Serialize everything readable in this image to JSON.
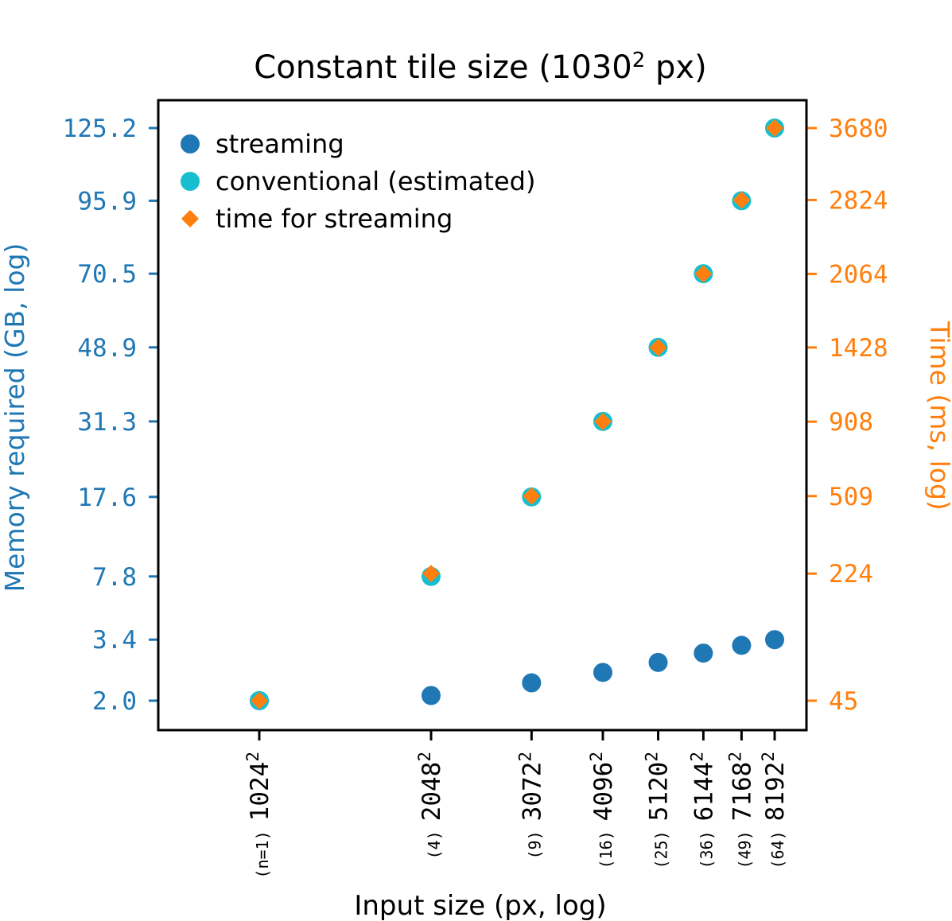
{
  "chart_data": {
    "type": "scatter",
    "title": "Constant tile size (1030",
    "title_sup": "2",
    "title_suffix": " px)",
    "xlabel": "Input size (px, log)",
    "ylabel_left": "Memory required (GB, log)",
    "ylabel_right": "Time (ms, log)",
    "x": [
      1024,
      2048,
      3072,
      4096,
      5120,
      6144,
      7168,
      8192
    ],
    "x_tick_labels": [
      "1024",
      "2048",
      "3072",
      "4096",
      "5120",
      "6144",
      "7168",
      "8192"
    ],
    "x_tick_sup": "2",
    "x_tick_counts": [
      "(n=1)",
      "(4)",
      "(9)",
      "(16)",
      "(25)",
      "(36)",
      "(49)",
      "(64)"
    ],
    "y_left_ticks": [
      2.0,
      3.4,
      7.8,
      17.6,
      31.3,
      48.9,
      70.5,
      95.9,
      125.2
    ],
    "y_left_tick_labels": [
      "2.0",
      "3.4",
      "7.8",
      "17.6",
      "31.3",
      "48.9",
      "70.5",
      "95.9",
      "125.2"
    ],
    "y_right_ticks": [
      45,
      224,
      509,
      908,
      1428,
      2064,
      2824,
      3680
    ],
    "y_right_tick_labels": [
      "45",
      "224",
      "509",
      "908",
      "1428",
      "2064",
      "2824",
      "3680"
    ],
    "series": [
      {
        "name": "streaming",
        "axis": "left",
        "marker": "circle",
        "color": "#1f77b4",
        "values": [
          2.0,
          2.01,
          2.12,
          2.3,
          2.55,
          2.85,
          3.15,
          3.4
        ]
      },
      {
        "name": "conventional (estimated)",
        "axis": "left",
        "marker": "circle",
        "color": "#17becf",
        "values": [
          2.0,
          7.8,
          17.6,
          31.3,
          48.9,
          70.5,
          95.9,
          125.2
        ]
      },
      {
        "name": "time for streaming",
        "axis": "right",
        "marker": "diamond",
        "color": "#ff7f0e",
        "values": [
          45,
          224,
          509,
          908,
          1428,
          2064,
          2824,
          3680
        ]
      }
    ],
    "legend_position": "top-left",
    "colors": {
      "left_axis": "#1f77b4",
      "right_axis": "#ff7f0e",
      "frame": "#000000"
    },
    "grid": false
  }
}
